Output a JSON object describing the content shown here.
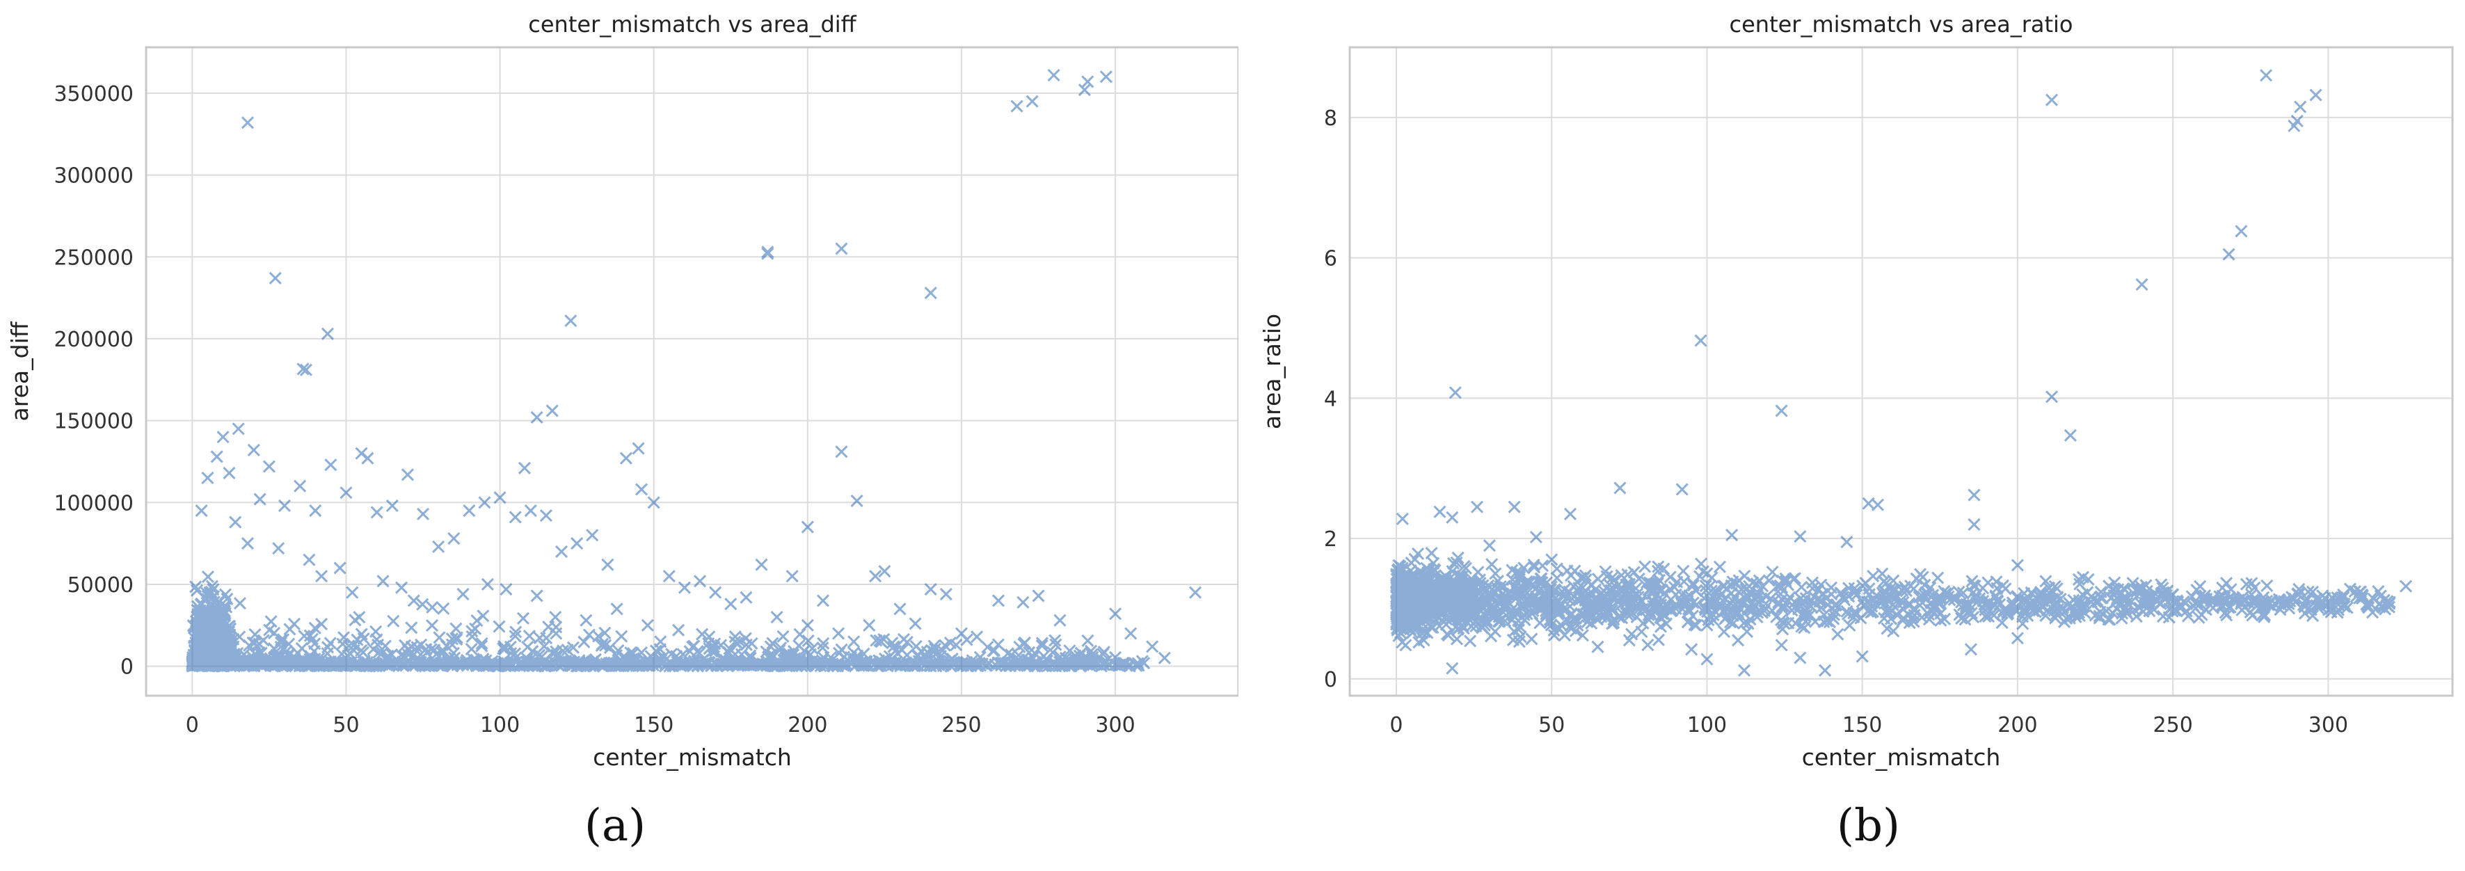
{
  "figure": {
    "panel_labels": [
      "(a)",
      "(b)"
    ]
  },
  "colors": {
    "marker": "#2f6db5",
    "grid": "#dcdcdc",
    "axes": "#c8c8c8",
    "text": "#333333"
  },
  "chart_data": [
    {
      "type": "scatter",
      "title": "center_mismatch vs area_diff",
      "xlabel": "center_mismatch",
      "ylabel": "area_diff",
      "xlim": [
        -15,
        340
      ],
      "ylim": [
        -18000,
        378000
      ],
      "xticks": [
        0,
        50,
        100,
        150,
        200,
        250,
        300
      ],
      "yticks": [
        0,
        50000,
        100000,
        150000,
        200000,
        250000,
        300000,
        350000
      ],
      "marker": "x",
      "grid": true,
      "points": [
        [
          18,
          332000
        ],
        [
          27,
          237000
        ],
        [
          37,
          181000
        ],
        [
          36,
          181500
        ],
        [
          44,
          203000
        ],
        [
          123,
          211000
        ],
        [
          117,
          156000
        ],
        [
          112,
          152000
        ],
        [
          108,
          121000
        ],
        [
          145,
          133000
        ],
        [
          141,
          127000
        ],
        [
          146,
          108000
        ],
        [
          187,
          253000
        ],
        [
          187,
          252000
        ],
        [
          211,
          255000
        ],
        [
          240,
          228000
        ],
        [
          211,
          131000
        ],
        [
          216,
          101000
        ],
        [
          200,
          85000
        ],
        [
          195,
          55000
        ],
        [
          268,
          342000
        ],
        [
          273,
          345000
        ],
        [
          280,
          361000
        ],
        [
          290,
          352000
        ],
        [
          291,
          357000
        ],
        [
          297,
          360000
        ],
        [
          326,
          45000
        ],
        [
          300,
          32000
        ],
        [
          305,
          20000
        ],
        [
          312,
          12000
        ],
        [
          316,
          5000
        ],
        [
          262,
          40000
        ],
        [
          270,
          39000
        ],
        [
          275,
          43000
        ],
        [
          282,
          28000
        ],
        [
          240,
          47000
        ],
        [
          245,
          44000
        ],
        [
          250,
          20000
        ],
        [
          255,
          18000
        ],
        [
          225,
          58000
        ],
        [
          222,
          55000
        ],
        [
          230,
          35000
        ],
        [
          235,
          26000
        ],
        [
          10,
          140000
        ],
        [
          15,
          145000
        ],
        [
          20,
          132000
        ],
        [
          8,
          128000
        ],
        [
          12,
          118000
        ],
        [
          25,
          122000
        ],
        [
          22,
          102000
        ],
        [
          30,
          98000
        ],
        [
          35,
          110000
        ],
        [
          40,
          95000
        ],
        [
          5,
          115000
        ],
        [
          3,
          95000
        ],
        [
          14,
          88000
        ],
        [
          18,
          75000
        ],
        [
          28,
          72000
        ],
        [
          45,
          123000
        ],
        [
          50,
          106000
        ],
        [
          55,
          130000
        ],
        [
          57,
          127000
        ],
        [
          60,
          94000
        ],
        [
          65,
          98000
        ],
        [
          70,
          117000
        ],
        [
          75,
          93000
        ],
        [
          80,
          73000
        ],
        [
          85,
          78000
        ],
        [
          90,
          95000
        ],
        [
          95,
          100000
        ],
        [
          100,
          103000
        ],
        [
          105,
          91000
        ],
        [
          110,
          95000
        ],
        [
          115,
          92000
        ],
        [
          120,
          70000
        ],
        [
          125,
          75000
        ],
        [
          130,
          80000
        ],
        [
          135,
          62000
        ],
        [
          150,
          100000
        ],
        [
          155,
          55000
        ],
        [
          160,
          48000
        ],
        [
          165,
          52000
        ],
        [
          170,
          45000
        ],
        [
          175,
          38000
        ],
        [
          180,
          42000
        ],
        [
          185,
          62000
        ],
        [
          190,
          30000
        ],
        [
          200,
          25000
        ],
        [
          205,
          40000
        ],
        [
          210,
          20000
        ],
        [
          215,
          15000
        ],
        [
          220,
          25000
        ],
        [
          228,
          12000
        ],
        [
          38,
          65000
        ],
        [
          42,
          55000
        ],
        [
          48,
          60000
        ],
        [
          52,
          45000
        ],
        [
          62,
          52000
        ],
        [
          68,
          48000
        ],
        [
          72,
          40000
        ],
        [
          78,
          36000
        ],
        [
          88,
          44000
        ],
        [
          96,
          50000
        ],
        [
          102,
          47000
        ],
        [
          112,
          43000
        ],
        [
          118,
          30000
        ],
        [
          128,
          28000
        ],
        [
          138,
          35000
        ],
        [
          148,
          25000
        ],
        [
          158,
          22000
        ],
        [
          168,
          18000
        ],
        [
          178,
          15000
        ],
        [
          188,
          12000
        ]
      ]
    },
    {
      "type": "scatter",
      "title": "center_mismatch vs area_ratio",
      "xlabel": "center_mismatch",
      "ylabel": "area_ratio",
      "xlim": [
        -15,
        340
      ],
      "ylim": [
        -0.24,
        9.0
      ],
      "xticks": [
        0,
        50,
        100,
        150,
        200,
        250,
        300
      ],
      "yticks": [
        0,
        2,
        4,
        6,
        8
      ],
      "marker": "x",
      "grid": true,
      "points": [
        [
          19,
          4.08
        ],
        [
          98,
          4.82
        ],
        [
          124,
          3.82
        ],
        [
          211,
          8.25
        ],
        [
          211,
          4.02
        ],
        [
          217,
          3.47
        ],
        [
          240,
          5.62
        ],
        [
          268,
          6.05
        ],
        [
          272,
          6.38
        ],
        [
          280,
          8.6
        ],
        [
          289,
          7.88
        ],
        [
          291,
          8.15
        ],
        [
          296,
          8.32
        ],
        [
          290,
          7.95
        ],
        [
          2,
          2.28
        ],
        [
          14,
          2.38
        ],
        [
          18,
          2.3
        ],
        [
          26,
          2.45
        ],
        [
          38,
          2.45
        ],
        [
          45,
          2.02
        ],
        [
          56,
          2.35
        ],
        [
          72,
          2.72
        ],
        [
          92,
          2.7
        ],
        [
          108,
          2.05
        ],
        [
          130,
          2.03
        ],
        [
          145,
          1.95
        ],
        [
          152,
          2.5
        ],
        [
          155,
          2.48
        ],
        [
          186,
          2.62
        ],
        [
          186,
          2.2
        ],
        [
          200,
          1.62
        ],
        [
          3,
          0.48
        ],
        [
          18,
          0.15
        ],
        [
          20,
          0.72
        ],
        [
          40,
          0.6
        ],
        [
          60,
          0.62
        ],
        [
          75,
          0.55
        ],
        [
          95,
          0.42
        ],
        [
          100,
          0.28
        ],
        [
          110,
          0.55
        ],
        [
          112,
          0.12
        ],
        [
          124,
          0.48
        ],
        [
          130,
          0.3
        ],
        [
          138,
          0.12
        ],
        [
          150,
          0.32
        ],
        [
          160,
          0.68
        ],
        [
          185,
          0.42
        ],
        [
          195,
          0.8
        ],
        [
          200,
          0.58
        ],
        [
          275,
          0.95
        ],
        [
          295,
          0.9
        ],
        [
          325,
          1.32
        ],
        [
          310,
          1.15
        ],
        [
          305,
          1.05
        ],
        [
          285,
          1.05
        ],
        [
          260,
          1.1
        ],
        [
          250,
          1.2
        ],
        [
          240,
          1.28
        ],
        [
          230,
          1.15
        ],
        [
          220,
          1.35
        ],
        [
          210,
          1.3
        ],
        [
          205,
          1.1
        ],
        [
          190,
          1.05
        ],
        [
          180,
          1.15
        ],
        [
          170,
          1.2
        ],
        [
          160,
          1.4
        ],
        [
          150,
          1.1
        ],
        [
          140,
          1.3
        ],
        [
          130,
          1.05
        ],
        [
          120,
          1.4
        ],
        [
          110,
          0.95
        ],
        [
          100,
          1.5
        ],
        [
          90,
          1.2
        ],
        [
          80,
          1.6
        ],
        [
          70,
          1.4
        ],
        [
          60,
          1.3
        ],
        [
          50,
          1.7
        ],
        [
          40,
          1.5
        ],
        [
          30,
          1.9
        ]
      ],
      "cluster": {
        "x_from": 0,
        "x_to": 320,
        "y_center": 1.1,
        "y_spread_start": 0.9,
        "y_spread_end": 0.25
      }
    }
  ]
}
